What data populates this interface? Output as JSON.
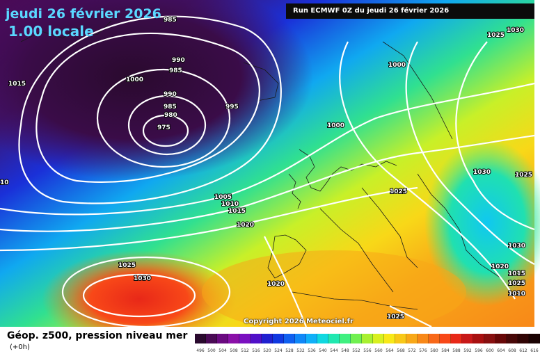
{
  "header": {
    "date": "jeudi 26 février 2026",
    "time": "1.00 locale",
    "run": "Run ECMWF 0Z du jeudi 26 février 2026"
  },
  "footer": {
    "caption": "Géop. z500, pression niveau mer",
    "sub_caption": "(+0h)",
    "copyright": "Copyright 2026 Meteociel.fr"
  },
  "isobars": [
    "985",
    "990",
    "985",
    "1000",
    "990",
    "985",
    "980",
    "975",
    "995",
    "1015",
    "1000",
    "1005",
    "1010",
    "1015",
    "1020",
    "1025",
    "1030",
    "1020",
    "1025",
    "1030",
    "1025",
    "1030",
    "1025",
    "1000",
    "1030",
    "1025",
    "1020",
    "1015",
    "1010",
    "1025",
    "10"
  ],
  "legend": {
    "ticks": [
      "496",
      "500",
      "504",
      "508",
      "512",
      "516",
      "520",
      "524",
      "528",
      "532",
      "536",
      "540",
      "544",
      "548",
      "552",
      "556",
      "560",
      "564",
      "568",
      "572",
      "576",
      "580",
      "584",
      "588",
      "592",
      "596",
      "600",
      "604",
      "608",
      "612",
      "616"
    ],
    "colors": [
      "#2a0a2e",
      "#4a0a55",
      "#6a0a80",
      "#8a10a8",
      "#7a10c0",
      "#5010c8",
      "#2020d0",
      "#1038e0",
      "#1060f0",
      "#1088f8",
      "#10b0f8",
      "#10d8e0",
      "#20e8b0",
      "#40f080",
      "#70f050",
      "#a8f030",
      "#d8f020",
      "#f8e818",
      "#f8c818",
      "#f8a818",
      "#f88818",
      "#f86818",
      "#f84818",
      "#e82818",
      "#c81818",
      "#a81010",
      "#881010",
      "#680808",
      "#480808",
      "#300404",
      "#1a0202"
    ]
  }
}
